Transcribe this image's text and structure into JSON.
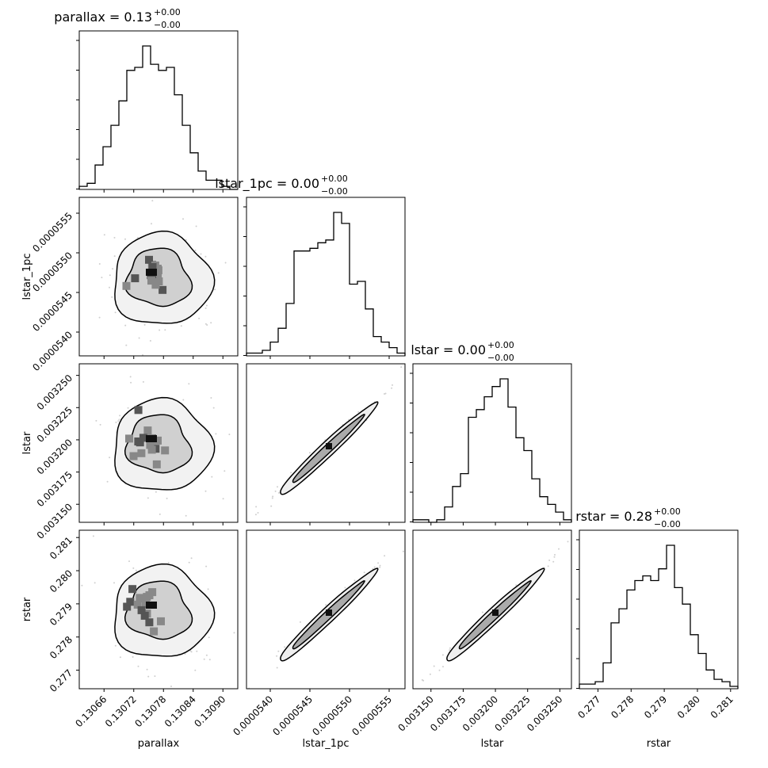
{
  "chart_data": {
    "type": "corner",
    "parameters": [
      {
        "name": "parallax",
        "range": [
          0.13061,
          0.13093
        ],
        "ticks": [
          0.13066,
          0.13072,
          0.13078,
          0.13084,
          0.1309
        ],
        "tick_labels": [
          "0.13066",
          "0.13072",
          "0.13078",
          "0.13084",
          "0.13090"
        ],
        "xlabel": "parallax",
        "ylabel": "",
        "title_value": "0.13",
        "title_up": "+0.00",
        "title_down": "−0.00"
      },
      {
        "name": "lstar_1pc",
        "range": [
          5.37e-05,
          5.57e-05
        ],
        "ticks": [
          5.4e-05,
          5.45e-05,
          5.5e-05,
          5.55e-05
        ],
        "tick_labels": [
          "0.0000540",
          "0.0000545",
          "0.0000550",
          "0.0000555"
        ],
        "xlabel": "lstar_1pc",
        "ylabel": "lstar_1pc",
        "title_value": "0.00",
        "title_up": "+0.00",
        "title_down": "−0.00"
      },
      {
        "name": "lstar",
        "range": [
          0.003136,
          0.003259
        ],
        "ticks": [
          0.00315,
          0.003175,
          0.0032,
          0.003225,
          0.00325
        ],
        "tick_labels": [
          "0.003150",
          "0.003175",
          "0.003200",
          "0.003225",
          "0.003250"
        ],
        "xlabel": "lstar",
        "ylabel": "lstar",
        "title_value": "0.00",
        "title_up": "+0.00",
        "title_down": "−0.00"
      },
      {
        "name": "rstar",
        "range": [
          0.27644,
          0.28122
        ],
        "ticks": [
          0.277,
          0.278,
          0.279,
          0.28,
          0.281
        ],
        "tick_labels": [
          "0.277",
          "0.278",
          "0.279",
          "0.280",
          "0.281"
        ],
        "xlabel": "rstar",
        "ylabel": "rstar",
        "title_value": "0.28",
        "title_up": "+0.00",
        "title_down": "−0.00"
      }
    ],
    "histograms": [
      [
        1,
        2,
        8,
        14,
        21,
        29,
        39,
        40,
        47,
        41,
        39,
        40,
        31,
        21,
        12,
        6,
        3,
        3,
        1,
        0
      ],
      [
        1,
        1,
        2,
        5,
        10,
        19,
        38,
        38,
        39,
        41,
        42,
        52,
        48,
        26,
        27,
        17,
        7,
        5,
        3,
        1
      ],
      [
        1,
        1,
        0,
        1,
        6,
        14,
        19,
        41,
        44,
        49,
        53,
        56,
        45,
        33,
        28,
        17,
        10,
        7,
        4,
        1
      ],
      [
        2,
        2,
        3,
        11,
        28,
        34,
        42,
        46,
        48,
        46,
        51,
        61,
        43,
        36,
        23,
        15,
        8,
        4,
        3,
        1
      ]
    ],
    "pairs": [
      {
        "x": "parallax",
        "y": "lstar_1pc",
        "correlation": 0.0
      },
      {
        "x": "parallax",
        "y": "lstar",
        "correlation": 0.0
      },
      {
        "x": "lstar_1pc",
        "y": "lstar",
        "correlation": 0.99
      },
      {
        "x": "parallax",
        "y": "rstar",
        "correlation": 0.0
      },
      {
        "x": "lstar_1pc",
        "y": "rstar",
        "correlation": 0.99
      },
      {
        "x": "lstar",
        "y": "rstar",
        "correlation": 0.99
      }
    ]
  }
}
